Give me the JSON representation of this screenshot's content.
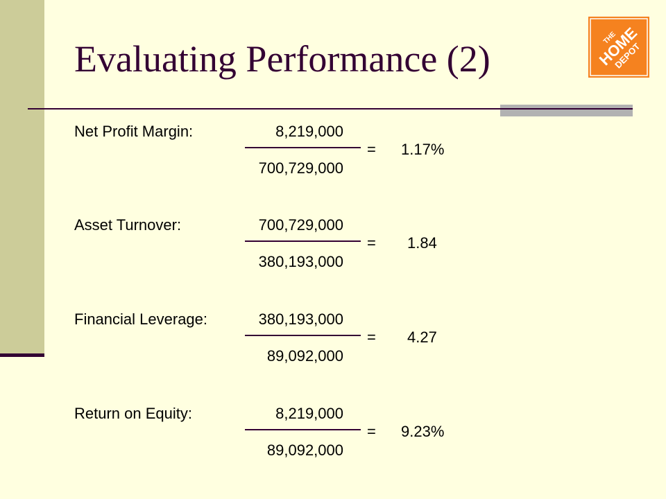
{
  "slide": {
    "title": "Evaluating Performance (2)",
    "logo_text": [
      "THE",
      "HOME",
      "DEPOT"
    ],
    "colors": {
      "background": "#ffffe0",
      "sidebar": "#cccc99",
      "accent": "#330033",
      "logo_orange": "#f5821f"
    }
  },
  "ratios": [
    {
      "label": "Net Profit Margin:",
      "numerator": "8,219,000",
      "denominator": "700,729,000",
      "equals": "=",
      "result": "1.17%"
    },
    {
      "label": "Asset Turnover:",
      "numerator": "700,729,000",
      "denominator": "380,193,000",
      "equals": "=",
      "result": "1.84"
    },
    {
      "label": "Financial Leverage:",
      "numerator": "380,193,000",
      "denominator": "89,092,000",
      "equals": "=",
      "result": "4.27"
    },
    {
      "label": "Return on Equity:",
      "numerator": "8,219,000",
      "denominator": "89,092,000",
      "equals": "=",
      "result": "9.23%"
    }
  ]
}
